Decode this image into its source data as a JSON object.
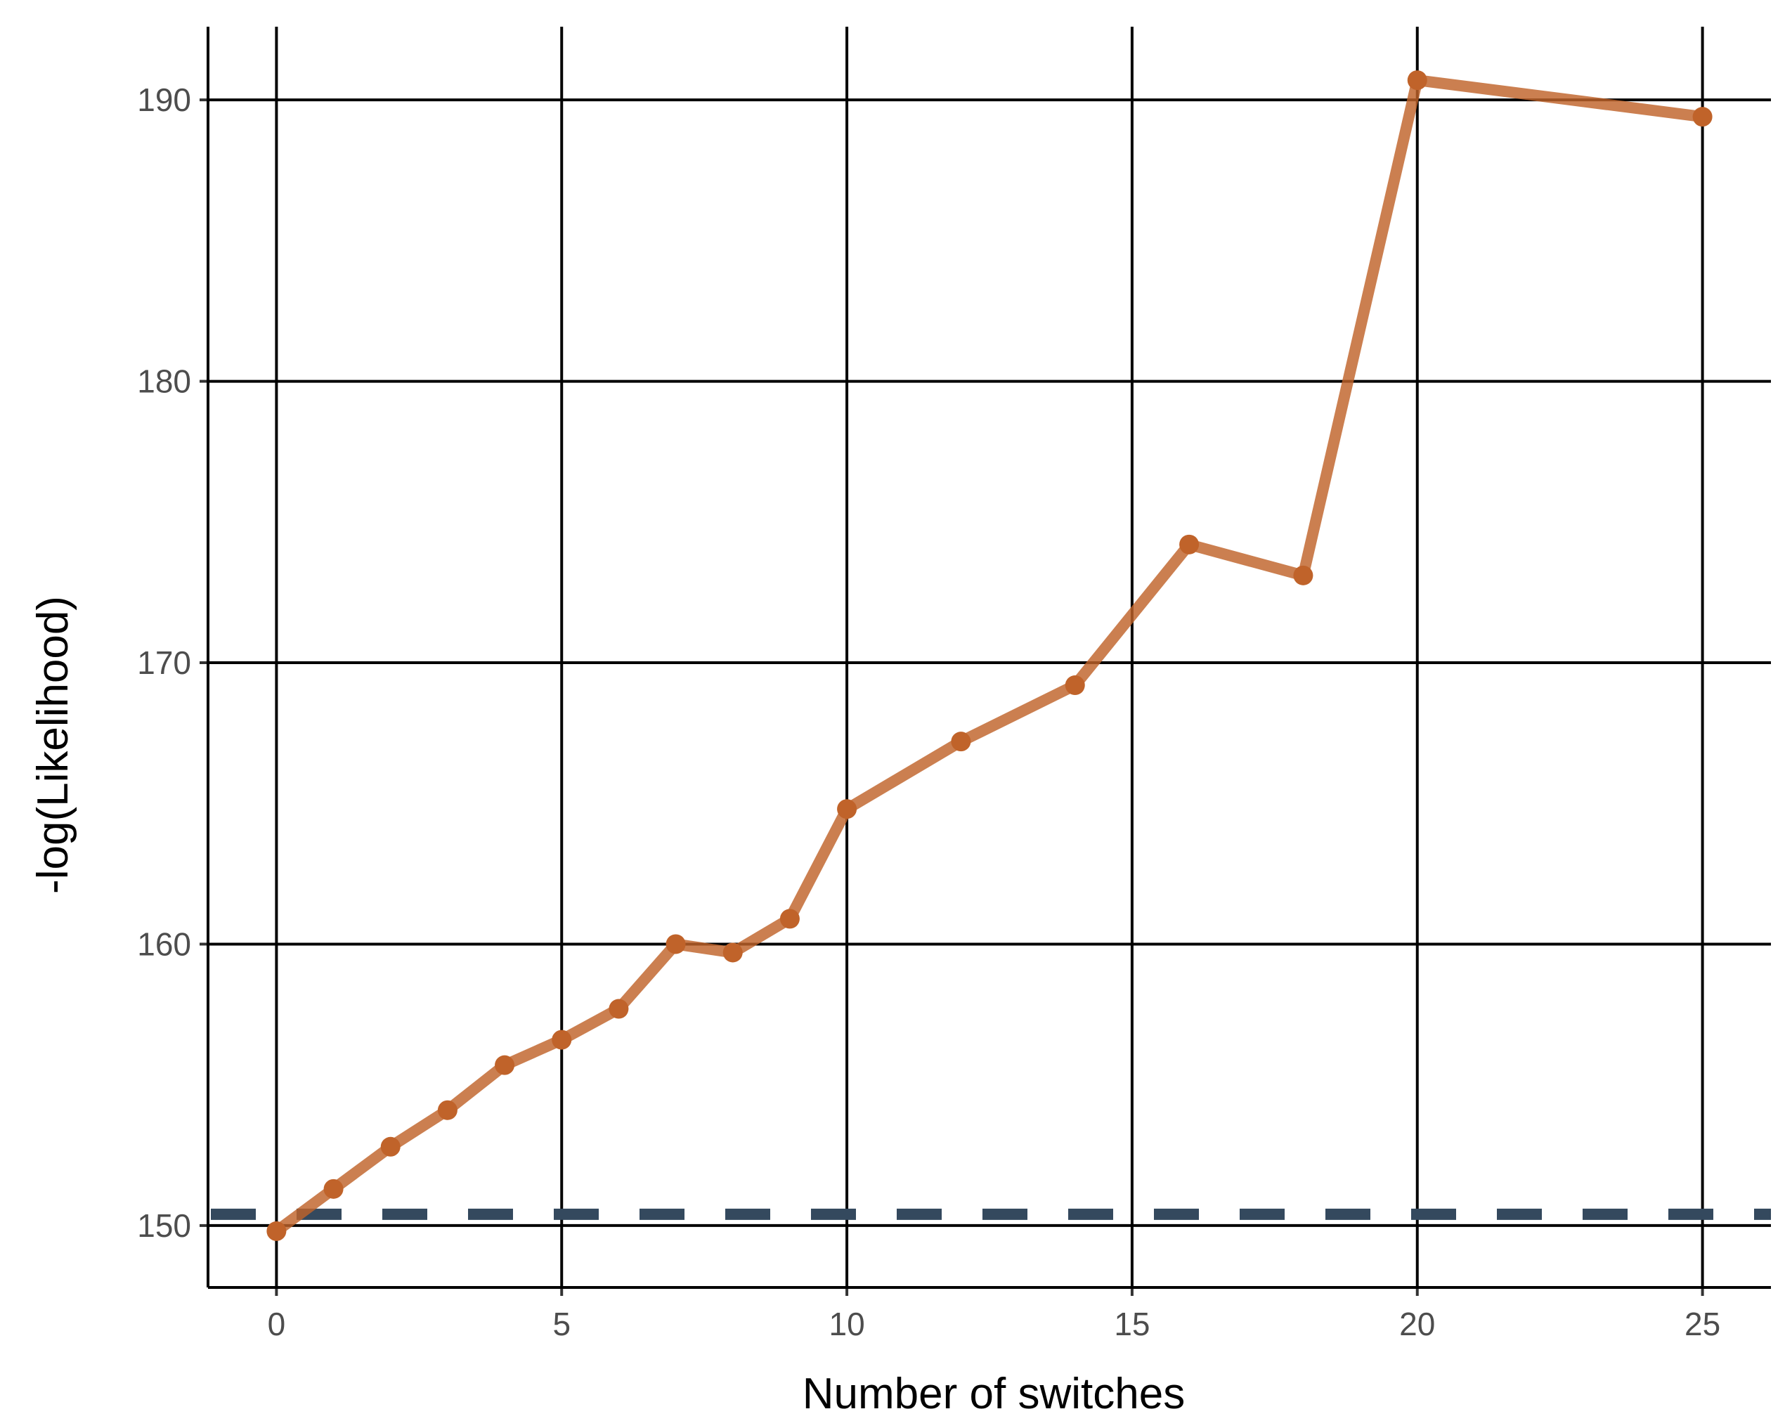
{
  "chart_data": {
    "type": "line",
    "xlabel": "Number of switches",
    "ylabel": "-log(Likelihood)",
    "xlim": [
      -1.2,
      26.2
    ],
    "ylim": [
      147.8,
      192.6
    ],
    "x_ticks": [
      0,
      5,
      10,
      15,
      20,
      25
    ],
    "y_ticks": [
      150,
      160,
      170,
      180,
      190
    ],
    "grid": "major lines, both axes",
    "series": [
      {
        "color": "#c0632a",
        "x": [
          0,
          1,
          2,
          3,
          4,
          5,
          6,
          7,
          8,
          9,
          10,
          12,
          14,
          16,
          18,
          20,
          25
        ],
        "y": [
          149.8,
          151.3,
          152.8,
          154.1,
          155.7,
          156.6,
          157.7,
          160.0,
          159.7,
          160.9,
          164.8,
          167.2,
          169.2,
          174.2,
          173.1,
          190.7,
          189.4
        ]
      }
    ],
    "reference_line": {
      "y": 150.4,
      "style": "dashed",
      "color": "#34495e"
    }
  }
}
